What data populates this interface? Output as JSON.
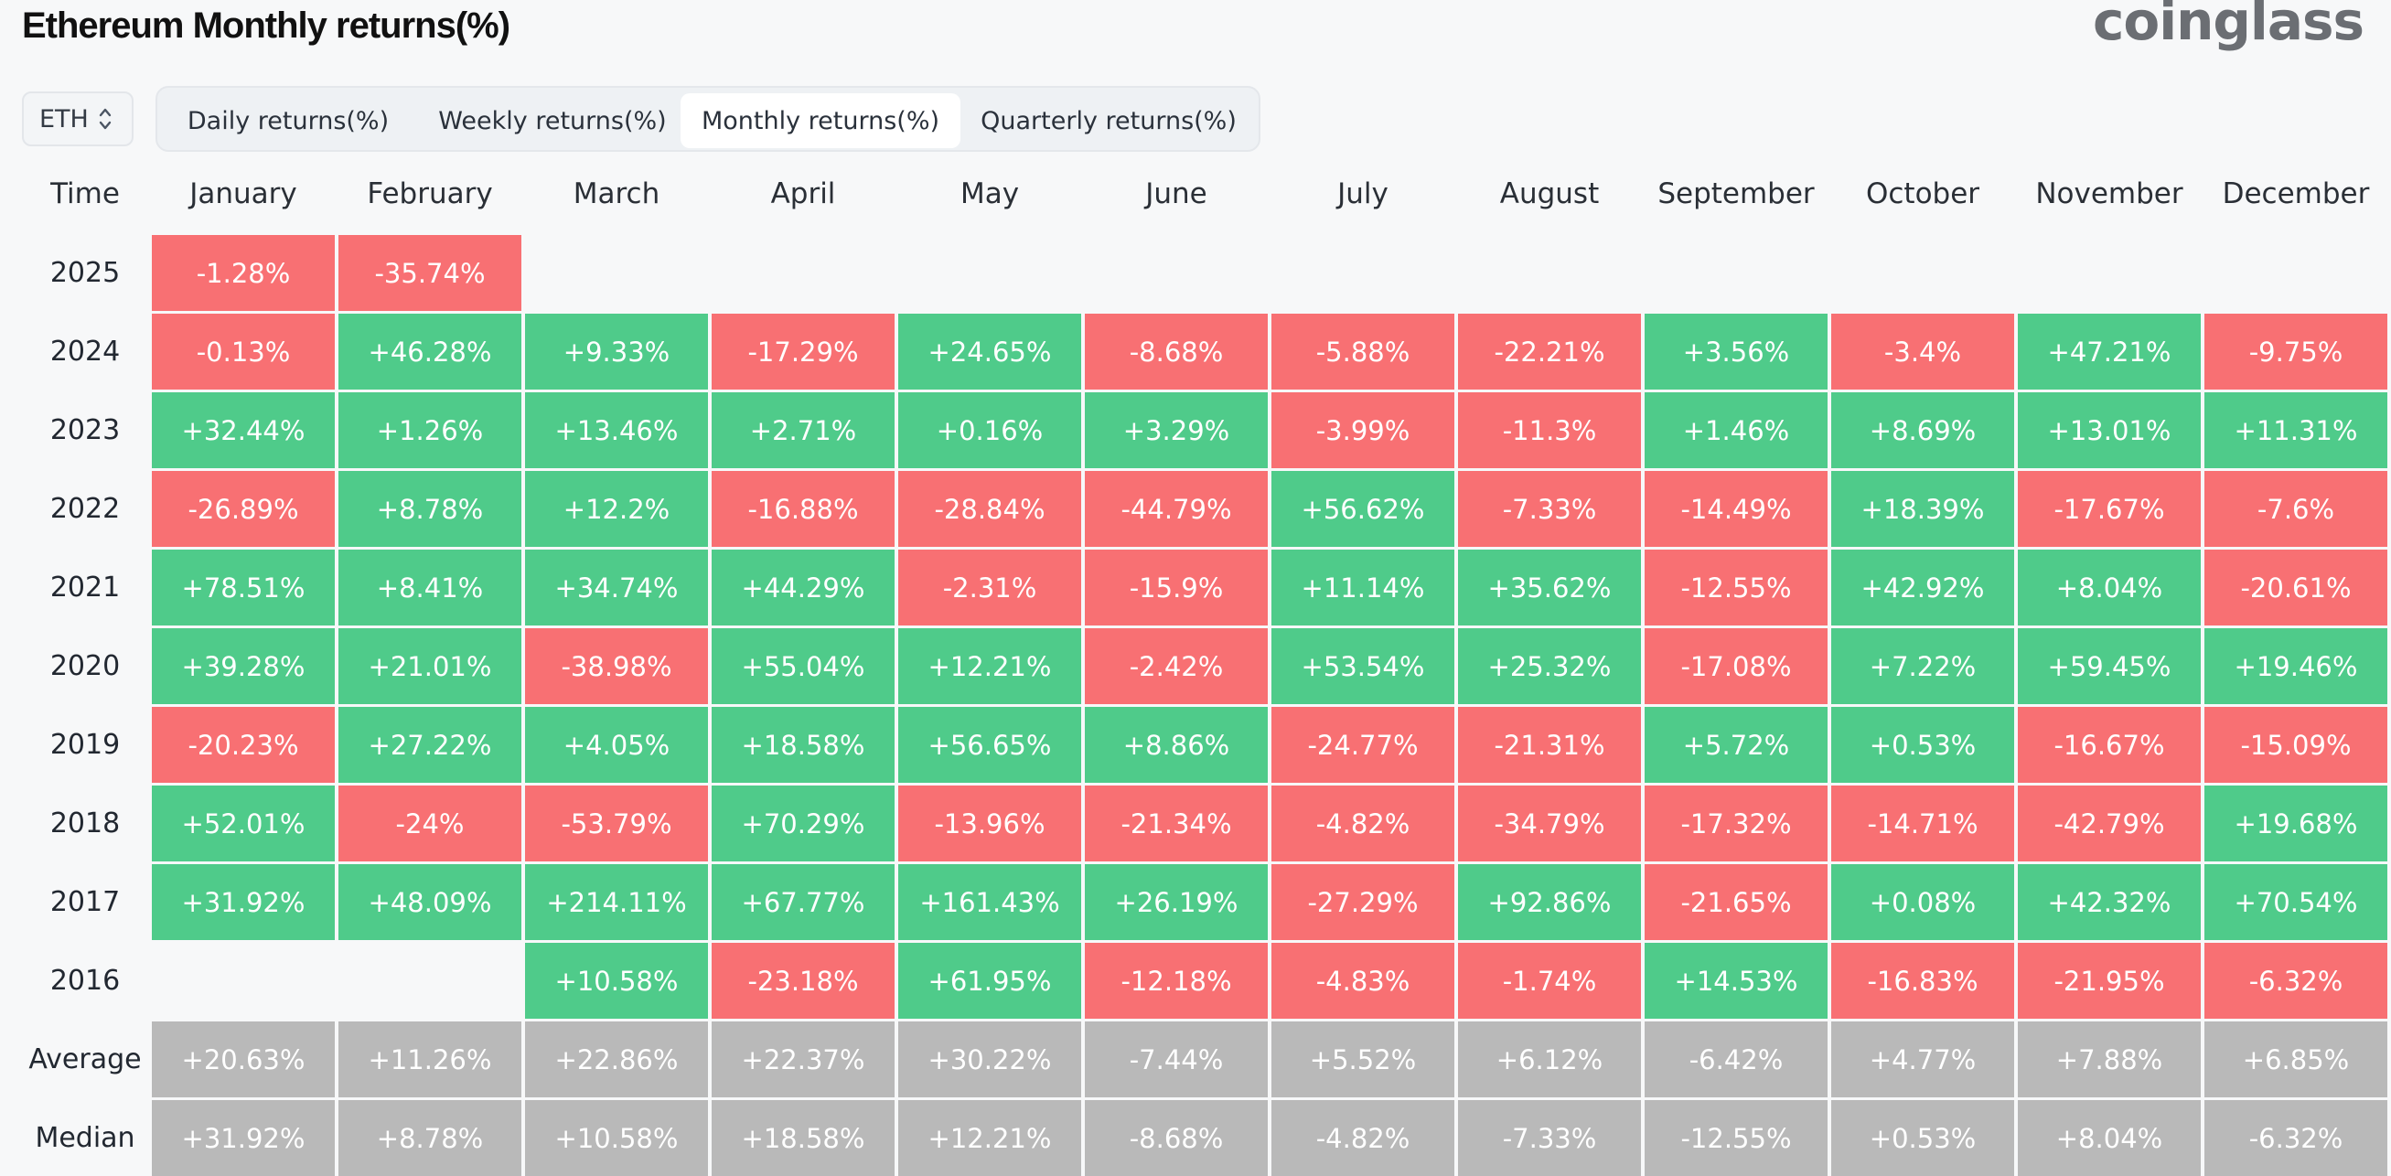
{
  "title": "Ethereum Monthly returns(%)",
  "brand": "coinglass",
  "coin_selector": {
    "value": "ETH",
    "icon": "chevron-up-down-icon"
  },
  "tabs": [
    {
      "label": "Daily returns(%)",
      "active": false
    },
    {
      "label": "Weekly returns(%)",
      "active": false
    },
    {
      "label": "Monthly returns(%)",
      "active": true
    },
    {
      "label": "Quarterly returns(%)",
      "active": false
    }
  ],
  "colors": {
    "positive": "#4fcb8a",
    "negative": "#f87073",
    "summary": "#b9b9b9"
  },
  "table": {
    "time_header": "Time",
    "months": [
      "January",
      "February",
      "March",
      "April",
      "May",
      "June",
      "July",
      "August",
      "September",
      "October",
      "November",
      "December"
    ],
    "rows": [
      {
        "label": "2025",
        "kind": "year",
        "values": [
          "-1.28%",
          "-35.74%",
          "",
          "",
          "",
          "",
          "",
          "",
          "",
          "",
          "",
          ""
        ]
      },
      {
        "label": "2024",
        "kind": "year",
        "values": [
          "-0.13%",
          "+46.28%",
          "+9.33%",
          "-17.29%",
          "+24.65%",
          "-8.68%",
          "-5.88%",
          "-22.21%",
          "+3.56%",
          "-3.4%",
          "+47.21%",
          "-9.75%"
        ]
      },
      {
        "label": "2023",
        "kind": "year",
        "values": [
          "+32.44%",
          "+1.26%",
          "+13.46%",
          "+2.71%",
          "+0.16%",
          "+3.29%",
          "-3.99%",
          "-11.3%",
          "+1.46%",
          "+8.69%",
          "+13.01%",
          "+11.31%"
        ]
      },
      {
        "label": "2022",
        "kind": "year",
        "values": [
          "-26.89%",
          "+8.78%",
          "+12.2%",
          "-16.88%",
          "-28.84%",
          "-44.79%",
          "+56.62%",
          "-7.33%",
          "-14.49%",
          "+18.39%",
          "-17.67%",
          "-7.6%"
        ]
      },
      {
        "label": "2021",
        "kind": "year",
        "values": [
          "+78.51%",
          "+8.41%",
          "+34.74%",
          "+44.29%",
          "-2.31%",
          "-15.9%",
          "+11.14%",
          "+35.62%",
          "-12.55%",
          "+42.92%",
          "+8.04%",
          "-20.61%"
        ]
      },
      {
        "label": "2020",
        "kind": "year",
        "values": [
          "+39.28%",
          "+21.01%",
          "-38.98%",
          "+55.04%",
          "+12.21%",
          "-2.42%",
          "+53.54%",
          "+25.32%",
          "-17.08%",
          "+7.22%",
          "+59.45%",
          "+19.46%"
        ]
      },
      {
        "label": "2019",
        "kind": "year",
        "values": [
          "-20.23%",
          "+27.22%",
          "+4.05%",
          "+18.58%",
          "+56.65%",
          "+8.86%",
          "-24.77%",
          "-21.31%",
          "+5.72%",
          "+0.53%",
          "-16.67%",
          "-15.09%"
        ]
      },
      {
        "label": "2018",
        "kind": "year",
        "values": [
          "+52.01%",
          "-24%",
          "-53.79%",
          "+70.29%",
          "-13.96%",
          "-21.34%",
          "-4.82%",
          "-34.79%",
          "-17.32%",
          "-14.71%",
          "-42.79%",
          "+19.68%"
        ]
      },
      {
        "label": "2017",
        "kind": "year",
        "values": [
          "+31.92%",
          "+48.09%",
          "+214.11%",
          "+67.77%",
          "+161.43%",
          "+26.19%",
          "-27.29%",
          "+92.86%",
          "-21.65%",
          "+0.08%",
          "+42.32%",
          "+70.54%"
        ]
      },
      {
        "label": "2016",
        "kind": "year",
        "values": [
          "",
          "",
          "+10.58%",
          "-23.18%",
          "+61.95%",
          "-12.18%",
          "-4.83%",
          "-1.74%",
          "+14.53%",
          "-16.83%",
          "-21.95%",
          "-6.32%"
        ]
      },
      {
        "label": "Average",
        "kind": "stat",
        "values": [
          "+20.63%",
          "+11.26%",
          "+22.86%",
          "+22.37%",
          "+30.22%",
          "-7.44%",
          "+5.52%",
          "+6.12%",
          "-6.42%",
          "+4.77%",
          "+7.88%",
          "+6.85%"
        ]
      },
      {
        "label": "Median",
        "kind": "stat",
        "values": [
          "+31.92%",
          "+8.78%",
          "+10.58%",
          "+18.58%",
          "+12.21%",
          "-8.68%",
          "-4.82%",
          "-7.33%",
          "-12.55%",
          "+0.53%",
          "+8.04%",
          "-6.32%"
        ]
      }
    ]
  }
}
